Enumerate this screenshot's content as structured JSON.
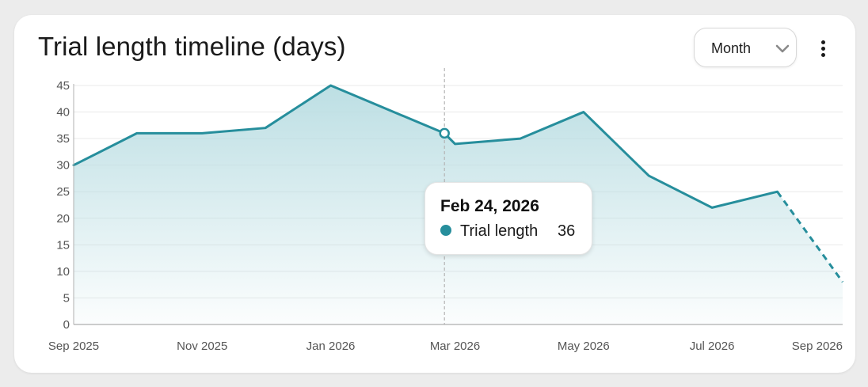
{
  "card": {
    "title": "Trial length timeline (days)",
    "period_select": {
      "selected": "Month"
    },
    "menu_icon": "kebab-vertical-icon"
  },
  "tooltip": {
    "date": "Feb 24, 2026",
    "series_label": "Trial length",
    "value": "36"
  },
  "colors": {
    "line": "#268e9c",
    "fill_top": "#b9dde2",
    "grid": "#e9e9e9",
    "axis_text": "#555555",
    "guide": "#b5b5b5"
  },
  "chart_data": {
    "type": "area",
    "title": "Trial length timeline (days)",
    "x": [
      "2025-09-01",
      "2025-10-01",
      "2025-11-01",
      "2025-12-01",
      "2026-01-01",
      "2026-02-24",
      "2026-03-01",
      "2026-04-01",
      "2026-05-01",
      "2026-06-01",
      "2026-07-01",
      "2026-08-01",
      "2026-09-01"
    ],
    "y": [
      30,
      36,
      36,
      37,
      45,
      36,
      34,
      35,
      40,
      28,
      22,
      25,
      8
    ],
    "projected_from": "2026-08-01",
    "series": [
      {
        "values": [
          30,
          36,
          36,
          37,
          45,
          36,
          34,
          35,
          40,
          28,
          22,
          25,
          8
        ]
      }
    ],
    "x_tick_labels": [
      "Sep 2025",
      "Nov 2025",
      "Jan 2026",
      "Mar 2026",
      "May 2026",
      "Jul 2026",
      "Sep 2026"
    ],
    "y_ticks": [
      0,
      5,
      10,
      15,
      20,
      25,
      30,
      35,
      40,
      45
    ],
    "ylim": [
      0,
      45
    ],
    "highlight": {
      "x": "2026-02-24",
      "y": 36
    },
    "grid": true,
    "legend": "none"
  }
}
